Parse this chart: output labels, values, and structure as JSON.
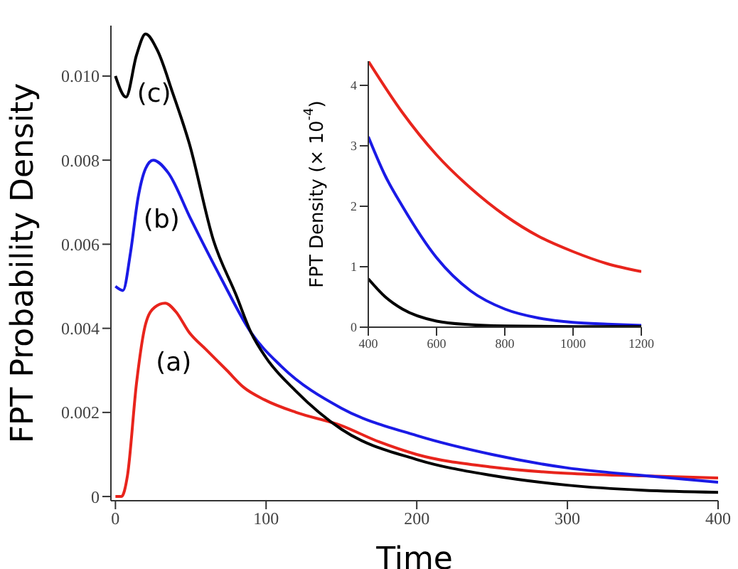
{
  "chart_data": [
    {
      "type": "line",
      "xlabel": "Time",
      "ylabel": "FPT Probability Density",
      "xlim": [
        -3,
        400
      ],
      "ylim": [
        -0.0001,
        0.0112
      ],
      "xticks": [
        0,
        100,
        200,
        300,
        400
      ],
      "yticks": [
        0,
        0.002,
        0.004,
        0.006,
        {
          "value": 0.008,
          "label": "0.008"
        },
        {
          "value": 0.01,
          "label": "0.010"
        }
      ],
      "grid": false,
      "legend": false,
      "marker": "none",
      "line_style": "solid",
      "series": [
        {
          "name": "(a)",
          "color": "#e8241c",
          "x": [
            0,
            4,
            8,
            14,
            20,
            26,
            33,
            40,
            49,
            60,
            74,
            85,
            99,
            120,
            149,
            175,
            200,
            250,
            300,
            350,
            400
          ],
          "values": [
            0,
            0,
            0.0005,
            0.0027,
            0.0041,
            0.0045,
            0.0046,
            0.0044,
            0.0039,
            0.0035,
            0.003,
            0.0026,
            0.0023,
            0.002,
            0.0017,
            0.0013,
            0.001,
            0.0007,
            0.00055,
            0.00049,
            0.00044
          ]
        },
        {
          "name": "(b)",
          "color": "#1a1ae6",
          "x": [
            0,
            5,
            10,
            15,
            20,
            25,
            35,
            50,
            70,
            90,
            110,
            150,
            200,
            250,
            300,
            350,
            400
          ],
          "values": [
            0.005,
            0.0049,
            0.0058,
            0.0071,
            0.0078,
            0.008,
            0.0077,
            0.0066,
            0.0052,
            0.0039,
            0.0031,
            0.0021,
            0.00145,
            0.001,
            0.00068,
            0.0005,
            0.00034
          ]
        },
        {
          "name": "(c)",
          "color": "#000000",
          "x": [
            0,
            7,
            14,
            20,
            28,
            38,
            49,
            65,
            80,
            90,
            100,
            120,
            150,
            200,
            250,
            300,
            350,
            400
          ],
          "values": [
            0.01,
            0.0095,
            0.0105,
            0.011,
            0.0106,
            0.0096,
            0.0084,
            0.0061,
            0.0048,
            0.0039,
            0.0033,
            0.0025,
            0.0016,
            0.00088,
            0.0005,
            0.00027,
            0.00015,
            0.0001
          ]
        }
      ]
    },
    {
      "type": "line",
      "ylabel": "FPT Density (× 10$^{-4}$)",
      "xlim": [
        400,
        1200
      ],
      "ylim": [
        0,
        4.4
      ],
      "xticks": [
        400,
        600,
        800,
        1000,
        1200
      ],
      "yticks": [
        0,
        1,
        2,
        3,
        4
      ],
      "grid": false,
      "legend": false,
      "marker": "none",
      "line_style": "solid",
      "series": [
        {
          "color": "#e8241c",
          "x": [
            400,
            500,
            600,
            700,
            800,
            900,
            1000,
            1100,
            1200
          ],
          "values": [
            4.4,
            3.55,
            2.85,
            2.3,
            1.85,
            1.5,
            1.25,
            1.05,
            0.92
          ]
        },
        {
          "color": "#1a1ae6",
          "x": [
            400,
            450,
            500,
            600,
            700,
            800,
            900,
            1000,
            1100,
            1200
          ],
          "values": [
            3.15,
            2.5,
            2,
            1.15,
            0.6,
            0.3,
            0.15,
            0.08,
            0.05,
            0.03
          ]
        },
        {
          "color": "#000000",
          "x": [
            400,
            450,
            500,
            600,
            700,
            800,
            1000,
            1200
          ],
          "values": [
            0.8,
            0.5,
            0.3,
            0.1,
            0.04,
            0.02,
            0.01,
            0.01
          ]
        }
      ]
    }
  ]
}
